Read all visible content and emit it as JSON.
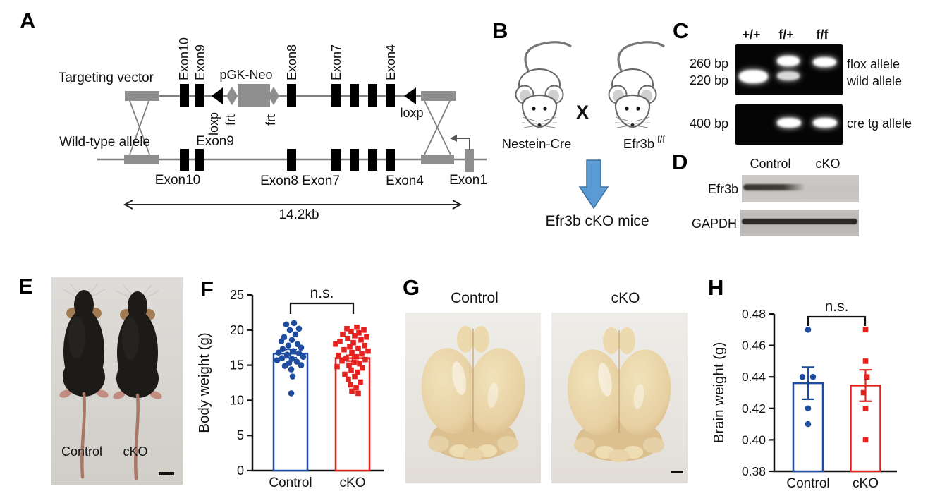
{
  "panelA": {
    "letter": "A",
    "targeting_vector": "Targeting vector",
    "wild_type_allele": "Wild-type allele",
    "top_labels": {
      "exon10": "Exon10",
      "exon9": "Exon9",
      "pgk_neo": "pGK-Neo",
      "exon8": "Exon8",
      "exon7": "Exon7",
      "exon4": "Exon4"
    },
    "loxp_left": "loxp",
    "frt_left": "frt",
    "frt_right": "frt",
    "loxp_right": "loxp",
    "wild_labels": {
      "exon9": "Exon9",
      "exon10": "Exon10",
      "exon8": "Exon8",
      "exon7": "Exon7",
      "exon4": "Exon4",
      "exon1": "Exon1"
    },
    "size_label": "14.2kb"
  },
  "panelB": {
    "letter": "B",
    "cross_symbol": "X",
    "parent1": "Nestein-Cre",
    "parent2_base": "Efr3b",
    "parent2_sup": "f/f",
    "result": "Efr3b cKO mice",
    "arrow_color": "#5B9BD5"
  },
  "panelC": {
    "letter": "C",
    "lane1": "+/+",
    "lane2": "f/+",
    "lane3": "f/f",
    "size_260": "260 bp",
    "size_220": "220 bp",
    "size_400": "400 bp",
    "flox_allele": "flox allele",
    "wild_allele": "wild allele",
    "cre_allele": "cre tg allele"
  },
  "panelD": {
    "letter": "D",
    "col1": "Control",
    "col2": "cKO",
    "row1": "Efr3b",
    "row2": "GAPDH"
  },
  "panelE": {
    "letter": "E",
    "label1": "Control",
    "label2": "cKO"
  },
  "panelF": {
    "letter": "F"
  },
  "panelG": {
    "letter": "G",
    "label1": "Control",
    "label2": "cKO"
  },
  "panelH": {
    "letter": "H"
  },
  "chart_data": [
    {
      "type": "bar",
      "title": "",
      "ylabel": "Body weight (g)",
      "xlabel": "",
      "ylim": [
        0,
        25
      ],
      "yticks": [
        0,
        5,
        10,
        15,
        20,
        25
      ],
      "ytick_labels": [
        "0",
        "5",
        "10",
        "15",
        "20",
        "25"
      ],
      "categories": [
        "Control",
        "cKO"
      ],
      "bar_means": [
        16.65,
        16.0
      ],
      "bar_errors": [
        0.6,
        0.4
      ],
      "significance": "n.s.",
      "colors": [
        "#1E4CA1",
        "#E42321"
      ],
      "markers": [
        "circle",
        "square"
      ],
      "points": {
        "Control": [
          21,
          20.8,
          20.2,
          20,
          19.4,
          19,
          18.6,
          18.4,
          18,
          17.8,
          17.5,
          17.3,
          17,
          16.8,
          16.7,
          16.5,
          16.2,
          16,
          15.9,
          15.7,
          15.5,
          15.3,
          15,
          14.9,
          14.4,
          13.4,
          11
        ],
        "cKO": [
          20.4,
          20.2,
          20,
          19.8,
          19.6,
          19.4,
          19.2,
          19,
          18.8,
          18.6,
          18.4,
          18.2,
          18,
          17.8,
          17.6,
          17.4,
          17.2,
          17,
          16.8,
          16.6,
          16.4,
          16.2,
          16,
          15.8,
          15.6,
          15.4,
          15.2,
          15,
          14.8,
          14.6,
          14.3,
          14,
          13.7,
          13.4,
          13,
          12.6,
          12.2,
          11.8,
          11.3,
          11
        ]
      },
      "jitter": {
        "Control": [
          5,
          -6,
          12,
          -1,
          7,
          -9,
          2,
          -13,
          10,
          -3,
          15,
          -11,
          4,
          -17,
          12,
          -5,
          18,
          -12,
          2,
          -19,
          9,
          -2,
          15,
          -8,
          1,
          3,
          1
        ],
        "cKO": [
          6,
          -8,
          16,
          -2,
          9,
          -14,
          3,
          20,
          -7,
          12,
          -18,
          1,
          -24,
          17,
          -4,
          8,
          -12,
          22,
          -1,
          13,
          -20,
          5,
          -9,
          18,
          -15,
          2,
          10,
          -5,
          -22,
          14,
          -2,
          7,
          -11,
          3,
          -6,
          11,
          -3,
          5,
          -1,
          8
        ]
      },
      "legend": [],
      "grid": false
    },
    {
      "type": "bar",
      "title": "",
      "ylabel": "Brain weight (g)",
      "xlabel": "",
      "ylim": [
        0.38,
        0.48
      ],
      "yticks": [
        0.38,
        0.4,
        0.42,
        0.44,
        0.46,
        0.48
      ],
      "ytick_labels": [
        "0.38",
        "0.40",
        "0.42",
        "0.44",
        "0.46",
        "0.48"
      ],
      "categories": [
        "Control",
        "cKO"
      ],
      "bar_means": [
        0.436,
        0.4345
      ],
      "bar_errors": [
        0.0102,
        0.01
      ],
      "significance": "n.s.",
      "colors": [
        "#1E4CA1",
        "#E42321"
      ],
      "markers": [
        "circle",
        "square"
      ],
      "points": {
        "Control": [
          0.47,
          0.44,
          0.44,
          0.42,
          0.41
        ],
        "cKO": [
          0.47,
          0.45,
          0.44,
          0.43,
          0.42,
          0.4
        ]
      },
      "jitter": {
        "Control": [
          0,
          -8,
          7,
          0,
          0
        ],
        "cKO": [
          0,
          0,
          2,
          -3,
          0,
          0
        ]
      },
      "legend": [],
      "grid": false
    }
  ]
}
